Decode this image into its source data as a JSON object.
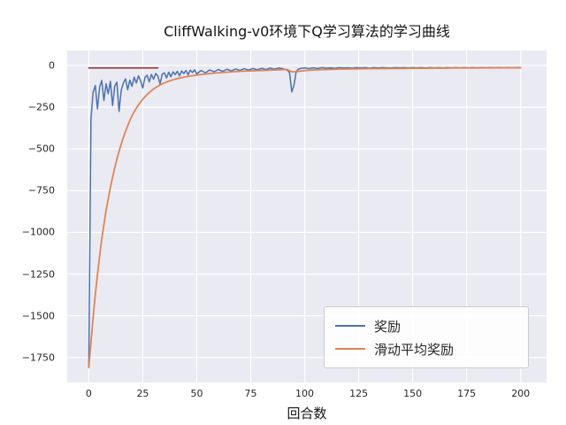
{
  "title": "CliffWalking-v0环境下Q学习算法的学习曲线",
  "chart_data": {
    "type": "line",
    "title": "CliffWalking-v0环境下Q学习算法的学习曲线",
    "xlabel": "回合数",
    "ylabel": "",
    "xlim": [
      -10,
      212
    ],
    "ylim": [
      -1900,
      90
    ],
    "xticks": [
      0,
      25,
      50,
      75,
      100,
      125,
      150,
      175,
      200
    ],
    "yticks": [
      0,
      -250,
      -500,
      -750,
      -1000,
      -1250,
      -1500,
      -1750
    ],
    "grid": true,
    "legend_position": "lower right",
    "plot_background": "#eaeaf2",
    "grid_color": "#ffffff",
    "series": [
      {
        "name": "奖励",
        "slug": "reward-line",
        "color": "#4c72b0",
        "width": 1.5,
        "in_legend": true,
        "points": [
          [
            0,
            -1810
          ],
          [
            1,
            -320
          ],
          [
            2,
            -160
          ],
          [
            3,
            -120
          ],
          [
            4,
            -260
          ],
          [
            5,
            -130
          ],
          [
            6,
            -90
          ],
          [
            7,
            -210
          ],
          [
            8,
            -110
          ],
          [
            9,
            -170
          ],
          [
            10,
            -95
          ],
          [
            11,
            -240
          ],
          [
            12,
            -125
          ],
          [
            13,
            -100
          ],
          [
            14,
            -275
          ],
          [
            15,
            -150
          ],
          [
            16,
            -105
          ],
          [
            17,
            -80
          ],
          [
            18,
            -145
          ],
          [
            19,
            -88
          ],
          [
            20,
            -125
          ],
          [
            21,
            -70
          ],
          [
            22,
            -105
          ],
          [
            23,
            -62
          ],
          [
            24,
            -92
          ],
          [
            25,
            -135
          ],
          [
            26,
            -72
          ],
          [
            27,
            -58
          ],
          [
            28,
            -98
          ],
          [
            29,
            -54
          ],
          [
            30,
            -82
          ],
          [
            31,
            -48
          ],
          [
            32,
            -64
          ],
          [
            33,
            -110
          ],
          [
            34,
            -52
          ],
          [
            35,
            -44
          ],
          [
            36,
            -75
          ],
          [
            37,
            -40
          ],
          [
            38,
            -68
          ],
          [
            39,
            -38
          ],
          [
            40,
            -55
          ],
          [
            41,
            -35
          ],
          [
            42,
            -62
          ],
          [
            43,
            -33
          ],
          [
            44,
            -48
          ],
          [
            45,
            -30
          ],
          [
            46,
            -56
          ],
          [
            47,
            -28
          ],
          [
            48,
            -42
          ],
          [
            49,
            -26
          ],
          [
            50,
            -50
          ],
          [
            52,
            -30
          ],
          [
            54,
            -44
          ],
          [
            56,
            -27
          ],
          [
            58,
            -38
          ],
          [
            60,
            -24
          ],
          [
            62,
            -36
          ],
          [
            64,
            -22
          ],
          [
            66,
            -33
          ],
          [
            68,
            -21
          ],
          [
            70,
            -30
          ],
          [
            72,
            -19
          ],
          [
            74,
            -28
          ],
          [
            76,
            -18
          ],
          [
            78,
            -26
          ],
          [
            80,
            -17
          ],
          [
            82,
            -24
          ],
          [
            84,
            -16
          ],
          [
            86,
            -22
          ],
          [
            88,
            -15
          ],
          [
            90,
            -20
          ],
          [
            92,
            -28
          ],
          [
            93,
            -45
          ],
          [
            94,
            -158
          ],
          [
            95,
            -120
          ],
          [
            96,
            -40
          ],
          [
            97,
            -22
          ],
          [
            98,
            -18
          ],
          [
            100,
            -15
          ],
          [
            102,
            -19
          ],
          [
            104,
            -14
          ],
          [
            106,
            -18
          ],
          [
            108,
            -13
          ],
          [
            110,
            -16
          ],
          [
            112,
            -14
          ],
          [
            114,
            -17
          ],
          [
            116,
            -13
          ],
          [
            118,
            -15
          ],
          [
            120,
            -14
          ],
          [
            122,
            -16
          ],
          [
            124,
            -13
          ],
          [
            126,
            -15
          ],
          [
            128,
            -13
          ],
          [
            130,
            -16
          ],
          [
            132,
            -13
          ],
          [
            134,
            -15
          ],
          [
            136,
            -13
          ],
          [
            138,
            -14
          ],
          [
            140,
            -15
          ],
          [
            142,
            -13
          ],
          [
            144,
            -14
          ],
          [
            146,
            -13
          ],
          [
            148,
            -15
          ],
          [
            150,
            -13
          ],
          [
            152,
            -14
          ],
          [
            154,
            -13
          ],
          [
            156,
            -15
          ],
          [
            158,
            -13
          ],
          [
            160,
            -14
          ],
          [
            162,
            -13
          ],
          [
            164,
            -15
          ],
          [
            166,
            -13
          ],
          [
            168,
            -14
          ],
          [
            170,
            -13
          ],
          [
            172,
            -14
          ],
          [
            174,
            -13
          ],
          [
            176,
            -15
          ],
          [
            178,
            -13
          ],
          [
            180,
            -14
          ],
          [
            182,
            -13
          ],
          [
            184,
            -14
          ],
          [
            186,
            -13
          ],
          [
            188,
            -14
          ],
          [
            190,
            -13
          ],
          [
            192,
            -14
          ],
          [
            194,
            -13
          ],
          [
            196,
            -14
          ],
          [
            198,
            -13
          ],
          [
            200,
            -13
          ]
        ]
      },
      {
        "name": "滑动平均奖励",
        "slug": "moving-average-line",
        "color": "#dd8452",
        "width": 1.75,
        "in_legend": true,
        "points": [
          [
            0,
            -1810
          ],
          [
            1,
            -1660
          ],
          [
            2,
            -1510
          ],
          [
            3,
            -1375
          ],
          [
            4,
            -1255
          ],
          [
            5,
            -1145
          ],
          [
            6,
            -1040
          ],
          [
            7,
            -955
          ],
          [
            8,
            -870
          ],
          [
            9,
            -800
          ],
          [
            10,
            -730
          ],
          [
            11,
            -672
          ],
          [
            12,
            -615
          ],
          [
            13,
            -562
          ],
          [
            14,
            -515
          ],
          [
            15,
            -472
          ],
          [
            16,
            -432
          ],
          [
            17,
            -396
          ],
          [
            18,
            -362
          ],
          [
            19,
            -330
          ],
          [
            20,
            -302
          ],
          [
            21,
            -278
          ],
          [
            22,
            -256
          ],
          [
            23,
            -236
          ],
          [
            24,
            -218
          ],
          [
            25,
            -202
          ],
          [
            26,
            -188
          ],
          [
            27,
            -174
          ],
          [
            28,
            -162
          ],
          [
            29,
            -151
          ],
          [
            30,
            -141
          ],
          [
            32,
            -124
          ],
          [
            34,
            -110
          ],
          [
            36,
            -99
          ],
          [
            38,
            -90
          ],
          [
            40,
            -82
          ],
          [
            42,
            -76
          ],
          [
            44,
            -70
          ],
          [
            46,
            -65
          ],
          [
            48,
            -61
          ],
          [
            50,
            -57
          ],
          [
            52,
            -54
          ],
          [
            54,
            -51
          ],
          [
            56,
            -48
          ],
          [
            58,
            -46
          ],
          [
            60,
            -44
          ],
          [
            62,
            -42
          ],
          [
            64,
            -40
          ],
          [
            66,
            -38
          ],
          [
            68,
            -37
          ],
          [
            70,
            -35
          ],
          [
            72,
            -34
          ],
          [
            74,
            -33
          ],
          [
            76,
            -32
          ],
          [
            78,
            -31
          ],
          [
            80,
            -30
          ],
          [
            82,
            -29
          ],
          [
            84,
            -28
          ],
          [
            86,
            -27
          ],
          [
            88,
            -26
          ],
          [
            90,
            -25
          ],
          [
            92,
            -25
          ],
          [
            94,
            -38
          ],
          [
            96,
            -37
          ],
          [
            98,
            -34
          ],
          [
            100,
            -31
          ],
          [
            102,
            -29
          ],
          [
            104,
            -27
          ],
          [
            106,
            -26
          ],
          [
            108,
            -25
          ],
          [
            110,
            -24
          ],
          [
            115,
            -22
          ],
          [
            120,
            -21
          ],
          [
            125,
            -20
          ],
          [
            130,
            -19
          ],
          [
            135,
            -19
          ],
          [
            140,
            -18
          ],
          [
            145,
            -18
          ],
          [
            150,
            -17
          ],
          [
            155,
            -17
          ],
          [
            160,
            -16
          ],
          [
            165,
            -16
          ],
          [
            170,
            -15
          ],
          [
            175,
            -15
          ],
          [
            180,
            -15
          ],
          [
            185,
            -14
          ],
          [
            190,
            -14
          ],
          [
            195,
            -14
          ],
          [
            200,
            -14
          ]
        ]
      },
      {
        "name": "参考线",
        "slug": "red-reference-line",
        "color": "#8f2d2d",
        "width": 1.5,
        "in_legend": false,
        "points": [
          [
            0,
            -15
          ],
          [
            32,
            -15
          ]
        ]
      }
    ]
  }
}
